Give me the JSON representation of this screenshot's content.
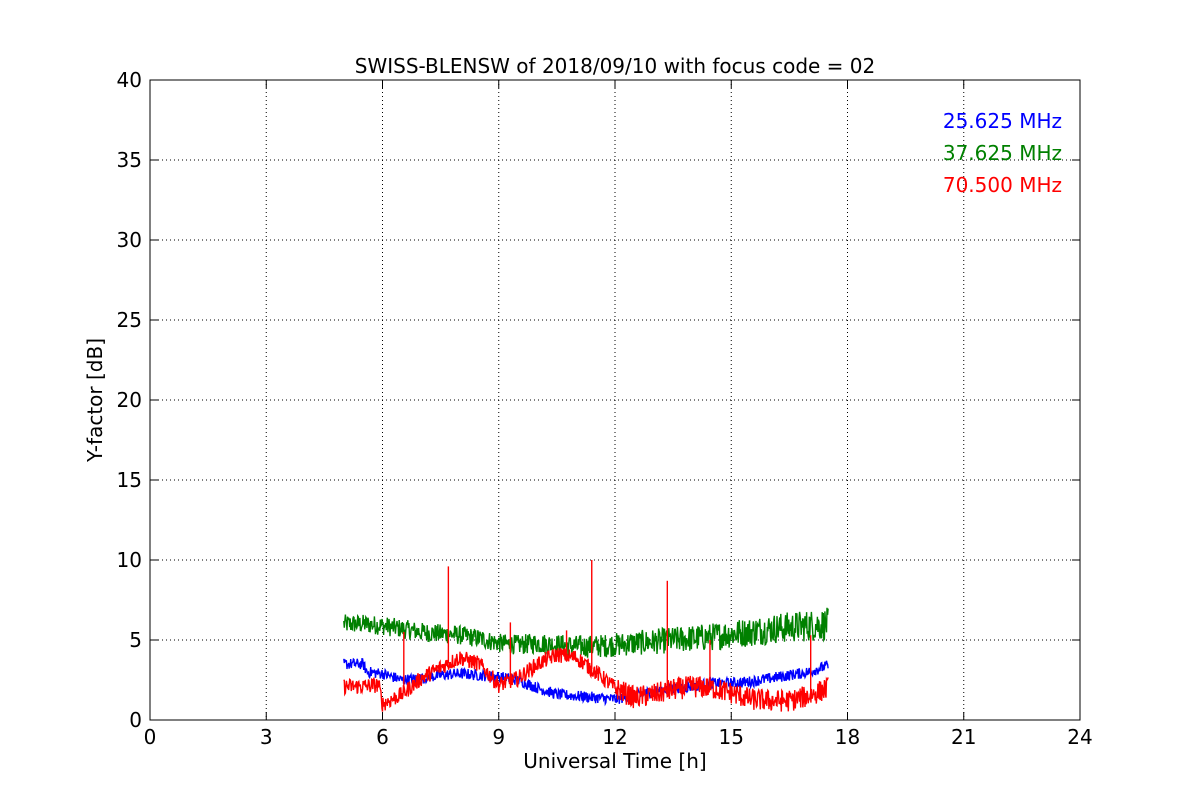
{
  "chart_data": {
    "type": "line",
    "title": "SWISS-BLENSW of 2018/09/10 with focus code = 02",
    "xlabel": "Universal Time [h]",
    "ylabel": "Y-factor [dB]",
    "xlim": [
      0,
      24
    ],
    "ylim": [
      0,
      40
    ],
    "xticks": [
      0,
      3,
      6,
      9,
      12,
      15,
      18,
      21,
      24
    ],
    "yticks": [
      0,
      5,
      10,
      15,
      20,
      25,
      30,
      35,
      40
    ],
    "grid": true,
    "legend_placement": "top-right",
    "series": [
      {
        "name": "25.625 MHz",
        "color": "#0000ff",
        "x": [
          5.0,
          5.5,
          5.6,
          6.0,
          6.5,
          7.0,
          7.5,
          8.0,
          8.5,
          9.0,
          9.5,
          10.0,
          10.5,
          11.0,
          11.5,
          12.0,
          12.5,
          13.0,
          13.5,
          14.0,
          14.5,
          15.0,
          15.5,
          16.0,
          16.5,
          17.0,
          17.5
        ],
        "values": [
          3.5,
          3.5,
          3.0,
          2.9,
          2.5,
          2.6,
          2.8,
          2.9,
          2.8,
          2.7,
          2.5,
          2.0,
          1.6,
          1.5,
          1.4,
          1.3,
          1.5,
          1.8,
          2.0,
          2.1,
          2.3,
          2.3,
          2.4,
          2.6,
          2.8,
          3.0,
          3.4
        ]
      },
      {
        "name": "37.625 MHz",
        "color": "#008000",
        "x": [
          5.0,
          5.5,
          6.0,
          6.5,
          7.0,
          7.5,
          8.0,
          8.5,
          9.0,
          9.5,
          10.0,
          10.5,
          11.0,
          11.5,
          12.0,
          12.5,
          13.0,
          13.5,
          14.0,
          14.5,
          15.0,
          15.5,
          16.0,
          16.5,
          17.0,
          17.5
        ],
        "values": [
          6.0,
          6.0,
          5.9,
          5.7,
          5.5,
          5.4,
          5.3,
          5.1,
          4.8,
          4.7,
          4.8,
          4.7,
          4.6,
          4.6,
          4.7,
          4.8,
          4.9,
          5.0,
          5.1,
          5.2,
          5.4,
          5.5,
          5.7,
          5.8,
          5.9,
          6.0
        ]
      },
      {
        "name": "70.500 MHz",
        "color": "#ff0000",
        "x": [
          5.0,
          5.5,
          5.9,
          6.0,
          6.5,
          7.0,
          7.5,
          8.0,
          8.5,
          9.0,
          9.5,
          10.0,
          10.5,
          11.0,
          11.5,
          12.0,
          12.5,
          13.0,
          13.5,
          14.0,
          14.5,
          15.0,
          15.5,
          16.0,
          16.5,
          17.0,
          17.5
        ],
        "values": [
          2.1,
          2.1,
          2.2,
          1.0,
          1.6,
          2.6,
          3.3,
          3.9,
          3.5,
          2.2,
          2.6,
          3.5,
          4.1,
          3.9,
          3.0,
          2.0,
          1.4,
          1.6,
          1.9,
          2.1,
          2.0,
          1.7,
          1.3,
          1.2,
          1.2,
          1.5,
          2.0
        ]
      }
    ],
    "spikes_70_500": [
      {
        "x": 6.55,
        "y": 5.5
      },
      {
        "x": 7.7,
        "y": 9.6
      },
      {
        "x": 9.3,
        "y": 6.1
      },
      {
        "x": 10.75,
        "y": 5.6
      },
      {
        "x": 11.4,
        "y": 10.0
      },
      {
        "x": 13.35,
        "y": 8.7
      },
      {
        "x": 14.45,
        "y": 5.0
      },
      {
        "x": 17.05,
        "y": 5.3
      }
    ]
  }
}
